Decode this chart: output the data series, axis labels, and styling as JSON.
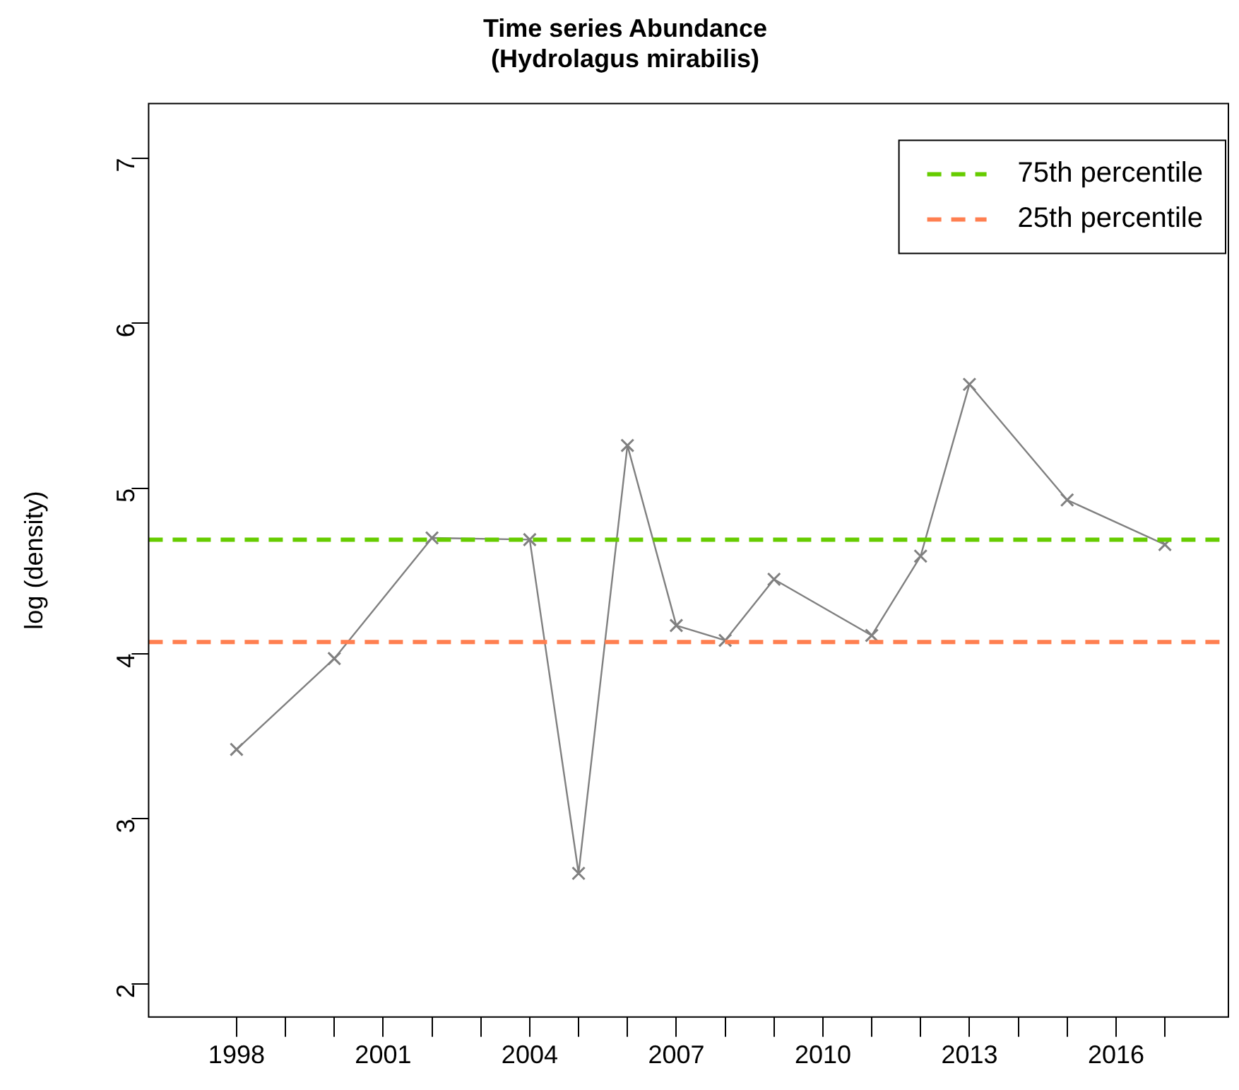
{
  "chart_data": {
    "type": "line",
    "title": "Time series Abundance\n(Hydrolagus mirabilis)",
    "ylabel": "log (density)",
    "x": [
      1998,
      2000,
      2002,
      2004,
      2005,
      2006,
      2007,
      2008,
      2009,
      2011,
      2012,
      2013,
      2015,
      2017
    ],
    "series": [
      {
        "color": "#808080",
        "values": [
          3.42,
          3.97,
          4.7,
          4.69,
          2.67,
          5.26,
          4.17,
          4.08,
          4.45,
          4.11,
          4.59,
          5.63,
          4.93,
          4.66
        ]
      }
    ],
    "marker": "cross",
    "line_style": "solid",
    "grid": false,
    "legend": "top right",
    "xlim": [
      1996.2,
      2018.3
    ],
    "ylim": [
      1.8,
      7.33
    ],
    "xticks": [
      1998,
      {
        "value": 1999,
        "label": null
      },
      {
        "value": 2000,
        "label": null
      },
      2001,
      {
        "value": 2002,
        "label": null
      },
      {
        "value": 2003,
        "label": null
      },
      2004,
      {
        "value": 2005,
        "label": null
      },
      {
        "value": 2006,
        "label": null
      },
      2007,
      {
        "value": 2008,
        "label": null
      },
      {
        "value": 2009,
        "label": null
      },
      2010,
      {
        "value": 2011,
        "label": null
      },
      {
        "value": 2012,
        "label": null
      },
      2013,
      {
        "value": 2014,
        "label": null
      },
      {
        "value": 2015,
        "label": null
      },
      2016,
      {
        "value": 2017,
        "label": null
      }
    ],
    "yticks": [
      2,
      3,
      4,
      5,
      6,
      7
    ],
    "ref_lines": [
      {
        "axis": "y",
        "value": 4.69,
        "label": "75th percentile",
        "color": "#66cc00",
        "line_style": "dashed"
      },
      {
        "axis": "y",
        "value": 4.07,
        "label": "25th percentile",
        "color": "#ff7f50",
        "line_style": "dashed"
      }
    ]
  }
}
